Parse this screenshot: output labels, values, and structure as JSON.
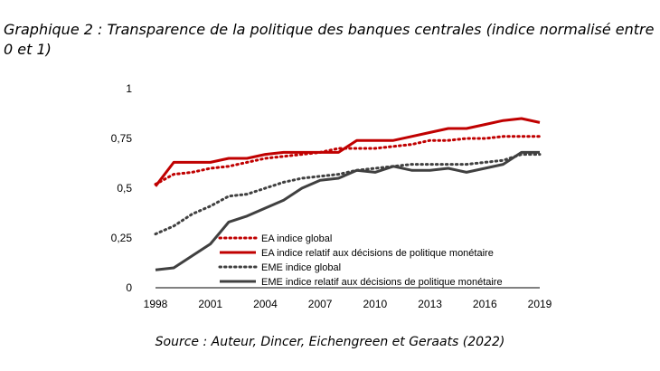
{
  "figure": {
    "title": "Graphique 2 : Transparence de la politique des banques centrales (indice normalisé entre 0 et 1)",
    "source": "Source : Auteur, Dincer, Eichengreen et Geraats (2022)"
  },
  "chart_data": {
    "type": "line",
    "x": [
      1998,
      1999,
      2000,
      2001,
      2002,
      2003,
      2004,
      2005,
      2006,
      2007,
      2008,
      2009,
      2010,
      2011,
      2012,
      2013,
      2014,
      2015,
      2016,
      2017,
      2018,
      2019
    ],
    "xticks": [
      "1998",
      "2001",
      "2004",
      "2007",
      "2010",
      "2013",
      "2016",
      "2019"
    ],
    "yticks": [
      "0",
      "0,25",
      "0,5",
      "0,75",
      "1"
    ],
    "ylim": [
      0,
      1
    ],
    "xlim": [
      1998,
      2019
    ],
    "grid": false,
    "legend_position": "bottom-right",
    "series": [
      {
        "name": "EA indice global",
        "color": "#c00000",
        "dash": "dotted",
        "values": [
          0.52,
          0.57,
          0.58,
          0.6,
          0.61,
          0.63,
          0.65,
          0.66,
          0.67,
          0.68,
          0.7,
          0.7,
          0.7,
          0.71,
          0.72,
          0.74,
          0.74,
          0.75,
          0.75,
          0.76,
          0.76,
          0.76
        ]
      },
      {
        "name": "EA indice relatif aux décisions de politique monétaire",
        "color": "#c00000",
        "dash": "solid",
        "values": [
          0.51,
          0.63,
          0.63,
          0.63,
          0.65,
          0.65,
          0.67,
          0.68,
          0.68,
          0.68,
          0.68,
          0.74,
          0.74,
          0.74,
          0.76,
          0.78,
          0.8,
          0.8,
          0.82,
          0.84,
          0.85,
          0.83
        ]
      },
      {
        "name": "EME indice global",
        "color": "#404040",
        "dash": "dotted",
        "values": [
          0.27,
          0.31,
          0.37,
          0.41,
          0.46,
          0.47,
          0.5,
          0.53,
          0.55,
          0.56,
          0.57,
          0.59,
          0.6,
          0.61,
          0.62,
          0.62,
          0.62,
          0.62,
          0.63,
          0.64,
          0.67,
          0.67
        ]
      },
      {
        "name": "EME indice relatif aux décisions de politique monétaire",
        "color": "#404040",
        "dash": "solid",
        "values": [
          0.09,
          0.1,
          0.16,
          0.22,
          0.33,
          0.36,
          0.4,
          0.44,
          0.5,
          0.54,
          0.55,
          0.59,
          0.58,
          0.61,
          0.59,
          0.59,
          0.6,
          0.58,
          0.6,
          0.62,
          0.68,
          0.68
        ]
      }
    ]
  }
}
